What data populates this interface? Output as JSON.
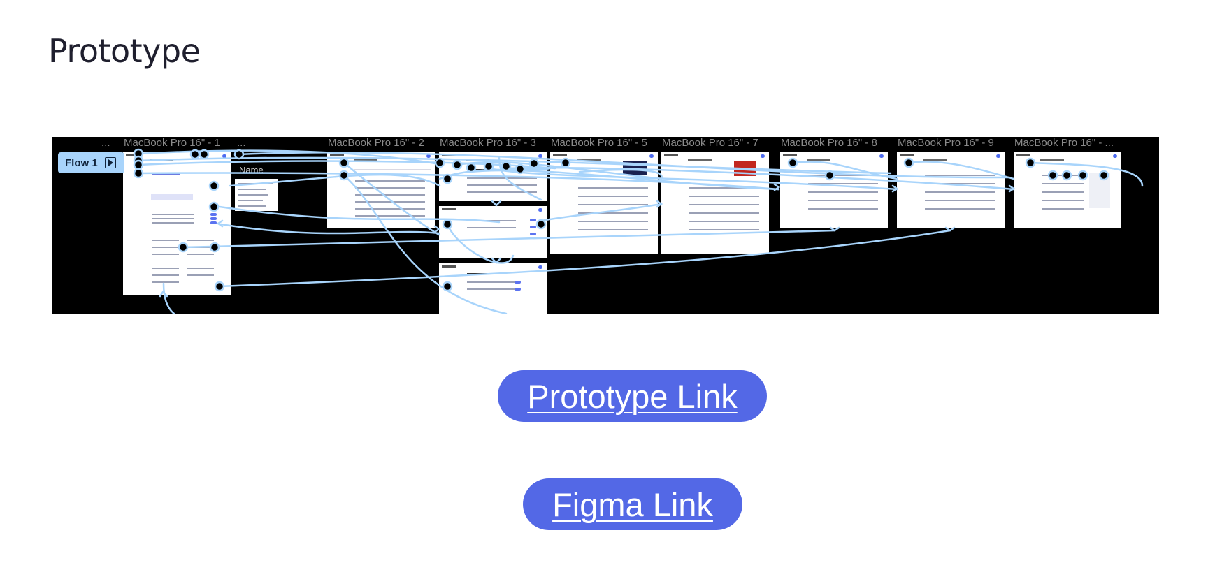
{
  "page": {
    "title": "Prototype"
  },
  "prototype": {
    "flow_label": "Flow 1",
    "flow_icon": "play-icon",
    "name_placeholder": "Name...",
    "ellipsis": "...",
    "frames": [
      "MacBook Pro 16\" - 1",
      "MacBook Pro 16\" - 2",
      "MacBook Pro 16\" - 3",
      "MacBook Pro 16\" - 5",
      "MacBook Pro 16\" - 7",
      "MacBook Pro 16\" - 8",
      "MacBook Pro 16\" - 9",
      "MacBook Pro 16\" - ..."
    ],
    "connection_color": "#a8d4fb"
  },
  "links": {
    "prototype_label": "Prototype Link",
    "figma_label": "Figma Link",
    "button_color": "#5368e6"
  }
}
